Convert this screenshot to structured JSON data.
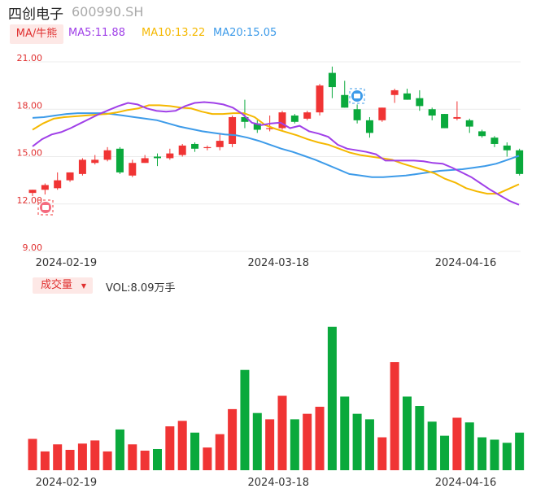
{
  "header": {
    "name": "四创电子",
    "code": "600990.SH"
  },
  "ma_legend": {
    "toggle": "MA/牛熊",
    "ma5": "MA5:11.88",
    "ma10": "MA10:13.22",
    "ma20": "MA20:15.05",
    "colors": {
      "ma5": "#a040e8",
      "ma10": "#f5b800",
      "ma20": "#3d9be9"
    }
  },
  "volume_legend": {
    "toggle": "成交量",
    "value": "VOL:8.09万手"
  },
  "colors": {
    "up": "#f03434",
    "down": "#0aa93c",
    "grid": "#ececec",
    "axis_text": "#e03030"
  },
  "chart_data": [
    {
      "type": "candlestick",
      "y_tick_labels": [
        "21.00",
        "18.00",
        "15.00",
        "12.00",
        "9.00"
      ],
      "ylim": [
        9,
        21
      ],
      "x_tick_labels": [
        "2024-02-19",
        "2024-03-18",
        "2024-04-16"
      ],
      "x_tick_index": [
        1,
        18,
        33
      ],
      "candles": [
        {
          "o": 12.7,
          "h": 12.9,
          "l": 12.5,
          "c": 12.9
        },
        {
          "o": 12.9,
          "h": 13.3,
          "l": 12.6,
          "c": 13.2
        },
        {
          "o": 13.0,
          "h": 14.0,
          "l": 12.9,
          "c": 13.5
        },
        {
          "o": 13.5,
          "h": 14.0,
          "l": 13.4,
          "c": 14.0
        },
        {
          "o": 13.9,
          "h": 14.9,
          "l": 13.8,
          "c": 14.8
        },
        {
          "o": 14.6,
          "h": 15.1,
          "l": 14.5,
          "c": 14.8
        },
        {
          "o": 14.8,
          "h": 15.6,
          "l": 14.7,
          "c": 15.4
        },
        {
          "o": 15.5,
          "h": 15.6,
          "l": 13.9,
          "c": 14.0
        },
        {
          "o": 13.8,
          "h": 14.8,
          "l": 13.7,
          "c": 14.6
        },
        {
          "o": 14.6,
          "h": 15.1,
          "l": 14.6,
          "c": 14.9
        },
        {
          "o": 15.0,
          "h": 15.2,
          "l": 14.4,
          "c": 14.9
        },
        {
          "o": 14.9,
          "h": 15.5,
          "l": 14.8,
          "c": 15.2
        },
        {
          "o": 15.1,
          "h": 15.8,
          "l": 15.0,
          "c": 15.7
        },
        {
          "o": 15.8,
          "h": 15.9,
          "l": 15.3,
          "c": 15.5
        },
        {
          "o": 15.6,
          "h": 15.7,
          "l": 15.4,
          "c": 15.6
        },
        {
          "o": 15.6,
          "h": 16.5,
          "l": 15.4,
          "c": 16.0
        },
        {
          "o": 15.8,
          "h": 17.6,
          "l": 15.6,
          "c": 17.5
        },
        {
          "o": 17.5,
          "h": 18.6,
          "l": 16.8,
          "c": 17.2
        },
        {
          "o": 17.1,
          "h": 17.3,
          "l": 16.5,
          "c": 16.7
        },
        {
          "o": 16.8,
          "h": 17.6,
          "l": 16.6,
          "c": 16.8
        },
        {
          "o": 16.8,
          "h": 17.9,
          "l": 16.7,
          "c": 17.8
        },
        {
          "o": 17.6,
          "h": 17.7,
          "l": 17.1,
          "c": 17.2
        },
        {
          "o": 17.4,
          "h": 17.9,
          "l": 17.3,
          "c": 17.8
        },
        {
          "o": 17.8,
          "h": 19.6,
          "l": 17.6,
          "c": 19.5
        },
        {
          "o": 20.3,
          "h": 20.7,
          "l": 18.7,
          "c": 19.4
        },
        {
          "o": 18.9,
          "h": 19.8,
          "l": 18.1,
          "c": 18.1
        },
        {
          "o": 18.0,
          "h": 18.3,
          "l": 17.1,
          "c": 17.3
        },
        {
          "o": 17.3,
          "h": 17.5,
          "l": 16.2,
          "c": 16.5
        },
        {
          "o": 17.3,
          "h": 18.1,
          "l": 17.2,
          "c": 18.1
        },
        {
          "o": 18.9,
          "h": 19.3,
          "l": 18.4,
          "c": 19.2
        },
        {
          "o": 19.0,
          "h": 19.3,
          "l": 18.6,
          "c": 18.6
        },
        {
          "o": 18.7,
          "h": 19.2,
          "l": 17.9,
          "c": 18.2
        },
        {
          "o": 18.0,
          "h": 18.1,
          "l": 17.3,
          "c": 17.6
        },
        {
          "o": 17.7,
          "h": 17.7,
          "l": 16.8,
          "c": 16.8
        },
        {
          "o": 17.4,
          "h": 18.5,
          "l": 17.3,
          "c": 17.5
        },
        {
          "o": 17.3,
          "h": 17.4,
          "l": 16.5,
          "c": 16.9
        },
        {
          "o": 16.6,
          "h": 16.7,
          "l": 16.2,
          "c": 16.3
        },
        {
          "o": 16.2,
          "h": 16.3,
          "l": 15.6,
          "c": 15.8
        },
        {
          "o": 15.7,
          "h": 15.9,
          "l": 15.0,
          "c": 15.4
        },
        {
          "o": 15.4,
          "h": 15.5,
          "l": 13.8,
          "c": 13.9
        }
      ],
      "ma5": [
        15.65,
        16.1,
        16.4,
        16.55,
        16.8,
        17.1,
        17.4,
        17.7,
        17.95,
        18.2,
        18.4,
        18.3,
        18.05,
        17.9,
        17.85,
        17.9,
        18.2,
        18.4,
        18.45,
        18.4,
        18.3,
        18.1,
        17.7,
        17.15,
        17.0,
        17.1,
        17.15,
        16.8,
        16.95,
        16.6,
        16.45,
        16.25,
        15.75,
        15.5,
        15.4,
        15.3,
        15.15,
        14.75,
        14.75,
        14.75,
        14.75,
        14.7,
        14.6,
        14.55,
        14.3,
        14.0,
        13.7,
        13.3,
        12.9,
        12.55,
        12.2,
        11.95
      ],
      "ma10": [
        16.7,
        17.1,
        17.4,
        17.5,
        17.55,
        17.6,
        17.65,
        17.7,
        17.8,
        17.95,
        18.05,
        18.25,
        18.25,
        18.2,
        18.1,
        18.05,
        17.85,
        17.7,
        17.7,
        17.75,
        17.75,
        17.5,
        17.0,
        16.75,
        16.55,
        16.35,
        16.1,
        15.9,
        15.75,
        15.5,
        15.25,
        15.1,
        15.0,
        14.9,
        14.8,
        14.55,
        14.35,
        14.15,
        13.95,
        13.6,
        13.35,
        13.0,
        12.8,
        12.65,
        12.65,
        12.95,
        13.25
      ],
      "ma20": [
        17.45,
        17.5,
        17.6,
        17.7,
        17.75,
        17.75,
        17.75,
        17.7,
        17.6,
        17.5,
        17.4,
        17.3,
        17.1,
        16.9,
        16.75,
        16.6,
        16.5,
        16.4,
        16.35,
        16.2,
        16.0,
        15.75,
        15.5,
        15.3,
        15.05,
        14.8,
        14.5,
        14.2,
        13.9,
        13.8,
        13.7,
        13.7,
        13.75,
        13.8,
        13.9,
        14.0,
        14.1,
        14.15,
        14.2,
        14.3,
        14.4,
        14.55,
        14.8,
        15.05
      ]
    },
    {
      "type": "bar",
      "title": "成交量",
      "x_tick_labels": [
        "2024-02-19",
        "2024-03-18",
        "2024-04-16"
      ],
      "x_tick_index": [
        1,
        18,
        33
      ],
      "values": [
        40,
        24,
        33,
        26,
        34,
        38,
        24,
        52,
        33,
        25,
        27,
        56,
        63,
        48,
        29,
        46,
        78,
        128,
        73,
        65,
        95,
        65,
        72,
        81,
        183,
        94,
        72,
        65,
        42,
        138,
        94,
        82,
        62,
        44,
        67,
        61,
        42,
        39,
        35,
        48
      ],
      "directions": [
        "u",
        "u",
        "u",
        "u",
        "u",
        "u",
        "u",
        "d",
        "u",
        "u",
        "d",
        "u",
        "u",
        "d",
        "u",
        "u",
        "u",
        "d",
        "d",
        "u",
        "u",
        "d",
        "u",
        "u",
        "d",
        "d",
        "d",
        "d",
        "u",
        "u",
        "d",
        "d",
        "d",
        "d",
        "u",
        "d",
        "d",
        "d",
        "d",
        "d"
      ],
      "ymax": 190
    }
  ]
}
